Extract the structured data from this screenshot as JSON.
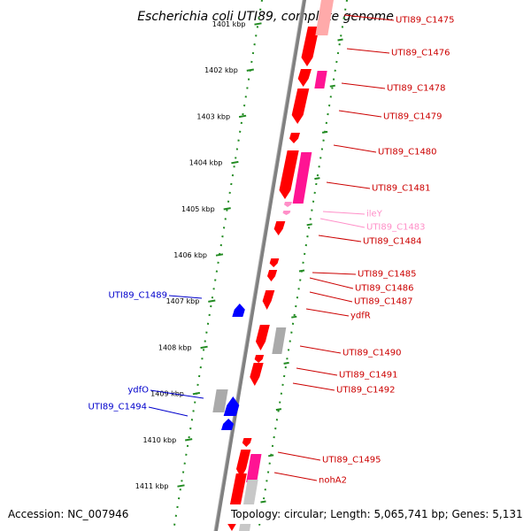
{
  "title": "Escherichia coli UTI89, complete genome",
  "accession": "Accession: NC_007946",
  "topology": "Topology: circular; Length: 5,065,741 bp; Genes: 5,131",
  "colors": {
    "cds": "#ff0000",
    "cds_grad": "#cc0000",
    "rna": "#ff1493",
    "pseudo": "#aaaaaa",
    "neg_strand": "#0000ff",
    "trna": "#ff8fc8",
    "backbone": "#808080",
    "tick": "#228b22",
    "label_red": "#cc0000",
    "label_blue": "#0000cc",
    "label_pink": "#ff8fc8"
  },
  "ticks": [
    {
      "label": "1401 kbp",
      "pos": 1401
    },
    {
      "label": "1402 kbp",
      "pos": 1402
    },
    {
      "label": "1403 kbp",
      "pos": 1403
    },
    {
      "label": "1404 kbp",
      "pos": 1404
    },
    {
      "label": "1405 kbp",
      "pos": 1405
    },
    {
      "label": "1406 kbp",
      "pos": 1406
    },
    {
      "label": "1407 kbp",
      "pos": 1407
    },
    {
      "label": "1408 kbp",
      "pos": 1408
    },
    {
      "label": "1409 kbp",
      "pos": 1409
    },
    {
      "label": "1410 kbp",
      "pos": 1410
    },
    {
      "label": "1411 kbp",
      "pos": 1411
    }
  ],
  "gene_labels": [
    {
      "text": "UTI89_C1475",
      "side": "right",
      "color": "red"
    },
    {
      "text": "UTI89_C1476",
      "side": "right",
      "color": "red"
    },
    {
      "text": "UTI89_C1478",
      "side": "right",
      "color": "red"
    },
    {
      "text": "UTI89_C1479",
      "side": "right",
      "color": "red"
    },
    {
      "text": "UTI89_C1480",
      "side": "right",
      "color": "red"
    },
    {
      "text": "UTI89_C1481",
      "side": "right",
      "color": "red"
    },
    {
      "text": "ileY",
      "side": "right",
      "color": "pink"
    },
    {
      "text": "UTI89_C1483",
      "side": "right",
      "color": "pink"
    },
    {
      "text": "UTI89_C1484",
      "side": "right",
      "color": "red"
    },
    {
      "text": "UTI89_C1485",
      "side": "right",
      "color": "red"
    },
    {
      "text": "UTI89_C1486",
      "side": "right",
      "color": "red"
    },
    {
      "text": "UTI89_C1487",
      "side": "right",
      "color": "red"
    },
    {
      "text": "ydfR",
      "side": "right",
      "color": "red"
    },
    {
      "text": "UTI89_C1490",
      "side": "right",
      "color": "red"
    },
    {
      "text": "UTI89_C1491",
      "side": "right",
      "color": "red"
    },
    {
      "text": "UTI89_C1492",
      "side": "right",
      "color": "red"
    },
    {
      "text": "UTI89_C1495",
      "side": "right",
      "color": "red"
    },
    {
      "text": "nohA2",
      "side": "right",
      "color": "red"
    },
    {
      "text": "UTI89_C1489",
      "side": "left",
      "color": "blue"
    },
    {
      "text": "ydfO",
      "side": "left",
      "color": "blue"
    },
    {
      "text": "UTI89_C1494",
      "side": "left",
      "color": "blue"
    }
  ]
}
